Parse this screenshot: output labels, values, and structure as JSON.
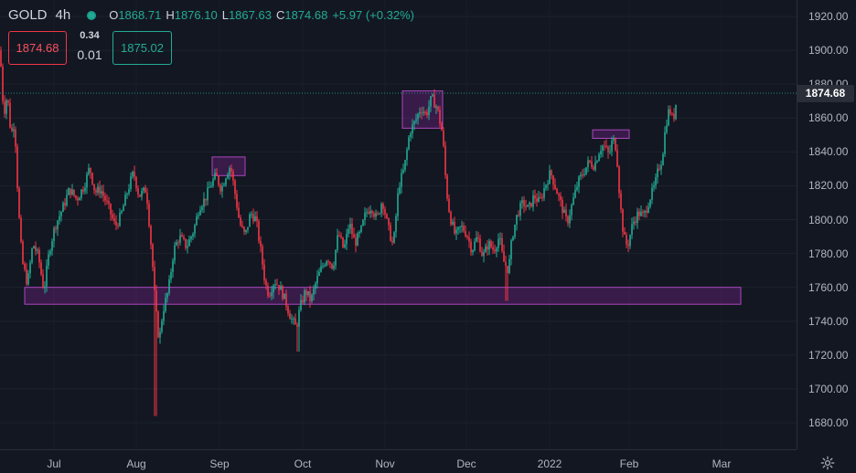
{
  "legend": {
    "symbol": "GOLD",
    "interval": "4h",
    "open_label": "O",
    "open_value": "1868.71",
    "high_label": "H",
    "high_value": "1876.10",
    "low_label": "L",
    "low_value": "1867.63",
    "close_label": "C",
    "close_value": "1874.68",
    "change": "+5.97 (+0.32%)"
  },
  "trade_panel": {
    "sell_price": "1874.68",
    "spread_top": "0.34",
    "spread_bottom": "0.01",
    "buy_price": "1875.02"
  },
  "last_price_label": "1874.68",
  "colors": {
    "background": "#131722",
    "up": "#22ab94",
    "down": "#f23645",
    "zone_fill": "#9c27b0",
    "zone_border": "#ab47bc"
  },
  "chart_data": {
    "type": "candlestick",
    "y_ticks": [
      "1920.00",
      "1900.00",
      "1880.00",
      "1860.00",
      "1840.00",
      "1820.00",
      "1800.00",
      "1780.00",
      "1760.00",
      "1740.00",
      "1720.00",
      "1700.00",
      "1680.00"
    ],
    "x_ticks": [
      "Jul",
      "Aug",
      "Sep",
      "Oct",
      "Nov",
      "Dec",
      "2022",
      "Feb",
      "Mar"
    ],
    "ylim": [
      1672,
      1924
    ],
    "last_price": 1874.68,
    "price_path": [
      [
        0,
        1900
      ],
      [
        4,
        1862
      ],
      [
        8,
        1874
      ],
      [
        12,
        1850
      ],
      [
        16,
        1858
      ],
      [
        20,
        1808
      ],
      [
        24,
        1776
      ],
      [
        30,
        1762
      ],
      [
        36,
        1786
      ],
      [
        42,
        1778
      ],
      [
        48,
        1758
      ],
      [
        54,
        1782
      ],
      [
        60,
        1796
      ],
      [
        68,
        1806
      ],
      [
        76,
        1818
      ],
      [
        84,
        1812
      ],
      [
        92,
        1820
      ],
      [
        98,
        1831
      ],
      [
        104,
        1816
      ],
      [
        110,
        1818
      ],
      [
        118,
        1808
      ],
      [
        126,
        1796
      ],
      [
        132,
        1802
      ],
      [
        140,
        1818
      ],
      [
        146,
        1828
      ],
      [
        152,
        1814
      ],
      [
        160,
        1818
      ],
      [
        166,
        1780
      ],
      [
        170,
        1748
      ],
      [
        174,
        1728
      ],
      [
        178,
        1746
      ],
      [
        184,
        1758
      ],
      [
        190,
        1782
      ],
      [
        196,
        1790
      ],
      [
        204,
        1784
      ],
      [
        212,
        1794
      ],
      [
        218,
        1808
      ],
      [
        224,
        1812
      ],
      [
        230,
        1820
      ],
      [
        236,
        1826
      ],
      [
        242,
        1818
      ],
      [
        248,
        1828
      ],
      [
        252,
        1832
      ],
      [
        258,
        1812
      ],
      [
        262,
        1798
      ],
      [
        268,
        1790
      ],
      [
        274,
        1804
      ],
      [
        280,
        1800
      ],
      [
        286,
        1778
      ],
      [
        290,
        1762
      ],
      [
        294,
        1756
      ],
      [
        300,
        1764
      ],
      [
        306,
        1760
      ],
      [
        312,
        1752
      ],
      [
        318,
        1742
      ],
      [
        324,
        1736
      ],
      [
        328,
        1748
      ],
      [
        334,
        1758
      ],
      [
        340,
        1752
      ],
      [
        346,
        1764
      ],
      [
        352,
        1772
      ],
      [
        358,
        1778
      ],
      [
        364,
        1772
      ],
      [
        370,
        1792
      ],
      [
        376,
        1782
      ],
      [
        382,
        1798
      ],
      [
        388,
        1786
      ],
      [
        394,
        1792
      ],
      [
        400,
        1804
      ],
      [
        406,
        1808
      ],
      [
        412,
        1800
      ],
      [
        418,
        1812
      ],
      [
        424,
        1796
      ],
      [
        430,
        1784
      ],
      [
        436,
        1820
      ],
      [
        442,
        1830
      ],
      [
        448,
        1852
      ],
      [
        454,
        1858
      ],
      [
        460,
        1866
      ],
      [
        466,
        1862
      ],
      [
        472,
        1872
      ],
      [
        478,
        1866
      ],
      [
        484,
        1850
      ],
      [
        488,
        1818
      ],
      [
        492,
        1802
      ],
      [
        498,
        1790
      ],
      [
        504,
        1796
      ],
      [
        510,
        1792
      ],
      [
        516,
        1782
      ],
      [
        522,
        1790
      ],
      [
        528,
        1778
      ],
      [
        534,
        1786
      ],
      [
        540,
        1782
      ],
      [
        546,
        1790
      ],
      [
        550,
        1776
      ],
      [
        556,
        1770
      ],
      [
        560,
        1790
      ],
      [
        566,
        1804
      ],
      [
        572,
        1810
      ],
      [
        578,
        1806
      ],
      [
        584,
        1814
      ],
      [
        590,
        1810
      ],
      [
        596,
        1820
      ],
      [
        602,
        1828
      ],
      [
        608,
        1818
      ],
      [
        614,
        1808
      ],
      [
        620,
        1798
      ],
      [
        626,
        1810
      ],
      [
        632,
        1822
      ],
      [
        638,
        1828
      ],
      [
        644,
        1834
      ],
      [
        650,
        1832
      ],
      [
        656,
        1842
      ],
      [
        660,
        1844
      ],
      [
        666,
        1838
      ],
      [
        670,
        1848
      ],
      [
        674,
        1842
      ],
      [
        678,
        1810
      ],
      [
        682,
        1790
      ],
      [
        686,
        1784
      ],
      [
        692,
        1798
      ],
      [
        698,
        1804
      ],
      [
        704,
        1802
      ],
      [
        710,
        1812
      ],
      [
        716,
        1820
      ],
      [
        720,
        1830
      ],
      [
        724,
        1836
      ],
      [
        728,
        1856
      ],
      [
        732,
        1866
      ],
      [
        736,
        1858
      ],
      [
        740,
        1872
      ]
    ],
    "zones": [
      {
        "x0": 27,
        "x1": 810,
        "y0": 1750,
        "y1": 1760
      },
      {
        "x0": 232,
        "x1": 268,
        "y0": 1826,
        "y1": 1837
      },
      {
        "x0": 440,
        "x1": 484,
        "y0": 1854,
        "y1": 1876
      },
      {
        "x0": 648,
        "x1": 688,
        "y0": 1848,
        "y1": 1853
      }
    ],
    "spikes": [
      {
        "x": 170,
        "low": 1684
      },
      {
        "x": 554,
        "low": 1752
      },
      {
        "x": 326,
        "low": 1722
      }
    ]
  }
}
